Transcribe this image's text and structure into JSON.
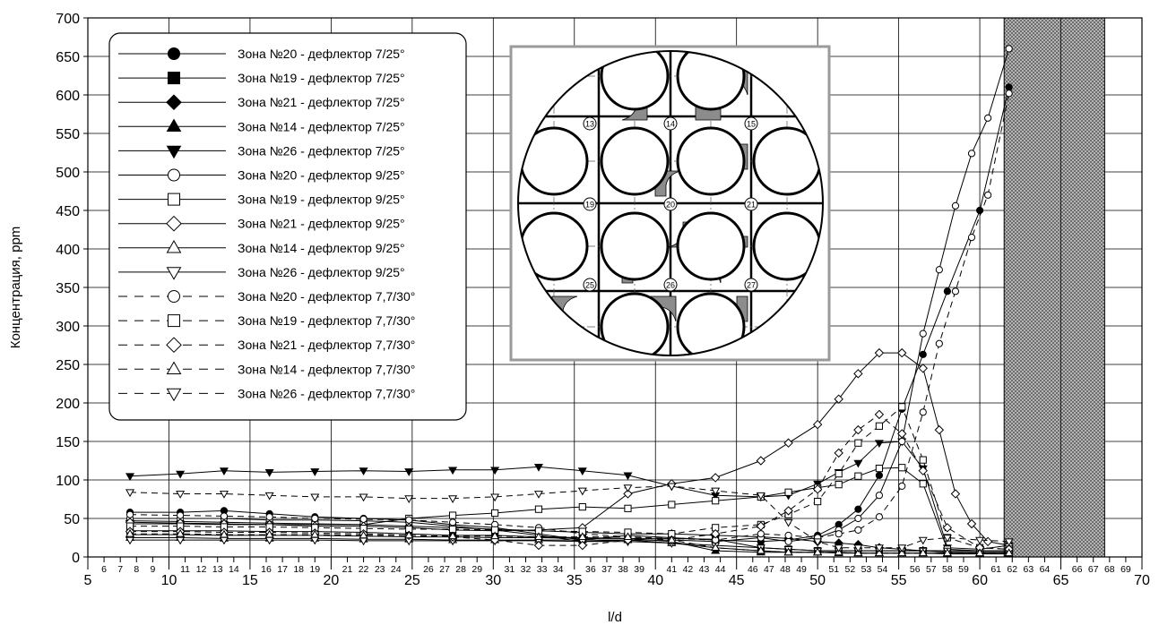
{
  "chart_data": {
    "type": "line",
    "xlabel": "l/d",
    "ylabel": "Концентрация, ppm",
    "xlim": [
      5,
      70
    ],
    "ylim": [
      0,
      700
    ],
    "x_ticks": [
      5,
      10,
      15,
      20,
      25,
      30,
      35,
      40,
      45,
      50,
      55,
      60,
      65,
      70
    ],
    "y_ticks": [
      0,
      50,
      100,
      150,
      200,
      250,
      300,
      350,
      400,
      450,
      500,
      550,
      600,
      650,
      700
    ],
    "grid": true,
    "legend_position": "top-left",
    "spacer_numbers": [
      6,
      7,
      8,
      9,
      11,
      12,
      13,
      14,
      16,
      17,
      18,
      19,
      21,
      22,
      23,
      24,
      26,
      27,
      28,
      29,
      31,
      32,
      33,
      34,
      36,
      37,
      38,
      39,
      41,
      42,
      43,
      44,
      46,
      47,
      48,
      49,
      51,
      52,
      53,
      54,
      56,
      57,
      58,
      59,
      61,
      62,
      63,
      64,
      66,
      67,
      68,
      69
    ],
    "hatched_region": [
      61.5,
      67.7
    ],
    "inset_labels": [
      "13",
      "14",
      "15",
      "19",
      "20",
      "21",
      "25",
      "26",
      "27"
    ],
    "series": [
      {
        "name": "Зона №20 - дефлектор 7/25°",
        "marker": "circle",
        "fill": "filled",
        "dash": "solid",
        "x": [
          7.6,
          10.7,
          13.4,
          16.2,
          19.0,
          22.0,
          24.8,
          27.5,
          30.1,
          32.8,
          35.5,
          38.3,
          41.0,
          43.7,
          46.5,
          48.2,
          50.0,
          51.3,
          52.5,
          53.8,
          55.2,
          56.5,
          58.0,
          60.0,
          61.8
        ],
        "y": [
          58,
          58,
          60,
          56,
          52,
          50,
          48,
          42,
          38,
          30,
          22,
          28,
          25,
          22,
          20,
          22,
          28,
          42,
          62,
          106,
          192,
          263,
          345,
          450,
          610
        ]
      },
      {
        "name": "Зона №19 - дефлектор 7/25°",
        "marker": "square",
        "fill": "filled",
        "dash": "solid",
        "x": [
          7.6,
          10.7,
          13.4,
          16.2,
          19.0,
          22.0,
          24.8,
          27.5,
          30.1,
          32.8,
          35.5,
          38.3,
          41.0,
          43.7,
          46.5,
          48.2,
          50.0,
          51.3,
          52.5,
          53.8,
          55.2,
          56.5,
          58.0,
          60.0,
          61.8
        ],
        "y": [
          34,
          34,
          34,
          33,
          33,
          32,
          30,
          28,
          28,
          26,
          25,
          24,
          24,
          23,
          12,
          10,
          8,
          8,
          8,
          8,
          8,
          8,
          8,
          8,
          8
        ]
      },
      {
        "name": "Зона №21 - дефлектор 7/25°",
        "marker": "diamond",
        "fill": "filled",
        "dash": "solid",
        "x": [
          7.6,
          10.7,
          13.4,
          16.2,
          19.0,
          22.0,
          24.8,
          27.5,
          30.1,
          32.8,
          35.5,
          38.3,
          41.0,
          43.7,
          46.5,
          48.2,
          50.0,
          51.3,
          52.5,
          53.8,
          55.2,
          56.5,
          58.0,
          60.0,
          61.8
        ],
        "y": [
          47,
          46,
          45,
          44,
          43,
          42,
          40,
          38,
          36,
          34,
          32,
          30,
          30,
          28,
          26,
          24,
          20,
          18,
          16,
          12,
          10,
          8,
          6,
          6,
          6
        ]
      },
      {
        "name": "Зона №14 - дефлектор 7/25°",
        "marker": "triangle-up",
        "fill": "filled",
        "dash": "solid",
        "x": [
          7.6,
          10.7,
          13.4,
          16.2,
          19.0,
          22.0,
          24.8,
          27.5,
          30.1,
          32.8,
          35.5,
          38.3,
          41.0,
          43.7,
          46.5,
          48.2,
          50.0,
          51.3,
          52.5,
          53.8,
          55.2,
          56.5,
          58.0,
          60.0,
          61.8
        ],
        "y": [
          29,
          29,
          28,
          28,
          28,
          27,
          26,
          26,
          25,
          25,
          24,
          24,
          20,
          8,
          6,
          6,
          6,
          5,
          5,
          5,
          5,
          5,
          4,
          4,
          4
        ]
      },
      {
        "name": "Зона №26 - дефлектор 7/25°",
        "marker": "triangle-down",
        "fill": "filled",
        "dash": "solid",
        "x": [
          7.6,
          10.7,
          13.4,
          16.2,
          19.0,
          22.0,
          24.8,
          27.5,
          30.1,
          32.8,
          35.5,
          38.3,
          41.0,
          43.7,
          46.5,
          48.2,
          50.0,
          51.3,
          52.5,
          53.8,
          55.2,
          56.5,
          58.0,
          60.0,
          61.8
        ],
        "y": [
          105,
          108,
          112,
          110,
          111,
          112,
          111,
          113,
          113,
          117,
          112,
          106,
          92,
          80,
          78,
          80,
          95,
          110,
          122,
          148,
          150,
          115,
          12,
          10,
          15
        ]
      },
      {
        "name": "Зона №20 - дефлектор 9/25°",
        "marker": "circle",
        "fill": "open",
        "dash": "solid",
        "x": [
          7.6,
          10.7,
          13.4,
          16.2,
          19.0,
          22.0,
          24.8,
          27.5,
          30.1,
          32.8,
          35.5,
          38.3,
          41.0,
          43.7,
          46.5,
          48.2,
          50.0,
          51.3,
          52.5,
          53.8,
          55.2,
          56.5,
          57.5,
          58.5,
          59.5,
          60.5,
          61.8
        ],
        "y": [
          50,
          50,
          50,
          48,
          48,
          47,
          45,
          40,
          35,
          28,
          20,
          22,
          22,
          20,
          25,
          20,
          25,
          35,
          50,
          80,
          150,
          290,
          373,
          456,
          524,
          570,
          660
        ]
      },
      {
        "name": "Зона №19 - дефлектор 9/25°",
        "marker": "square",
        "fill": "open",
        "dash": "solid",
        "x": [
          7.6,
          10.7,
          13.4,
          16.2,
          19.0,
          22.0,
          24.8,
          27.5,
          30.1,
          32.8,
          35.5,
          38.3,
          41.0,
          43.7,
          46.5,
          48.2,
          50.0,
          51.3,
          52.5,
          53.8,
          55.2,
          56.5,
          58.0,
          60.0,
          61.8
        ],
        "y": [
          43,
          43,
          42,
          42,
          42,
          42,
          50,
          54,
          57,
          62,
          65,
          63,
          68,
          73,
          78,
          84,
          90,
          94,
          105,
          115,
          116,
          95,
          10,
          8,
          8
        ]
      },
      {
        "name": "Зона №21 - дефлектор 9/25°",
        "marker": "diamond",
        "fill": "open",
        "dash": "solid",
        "x": [
          7.6,
          10.7,
          13.4,
          16.2,
          19.0,
          22.0,
          24.8,
          27.5,
          30.1,
          32.8,
          35.5,
          38.3,
          41.0,
          43.7,
          46.5,
          48.2,
          50.0,
          51.3,
          52.5,
          53.8,
          55.2,
          56.5,
          57.5,
          58.5,
          59.5,
          60.5,
          61.8
        ],
        "y": [
          45,
          44,
          43,
          42,
          40,
          40,
          38,
          35,
          34,
          35,
          38,
          82,
          95,
          103,
          125,
          148,
          172,
          205,
          238,
          265,
          265,
          245,
          165,
          82,
          43,
          20,
          15
        ]
      },
      {
        "name": "Зона №14 - дефлектор 9/25°",
        "marker": "triangle-up",
        "fill": "open",
        "dash": "solid",
        "x": [
          7.6,
          10.7,
          13.4,
          16.2,
          19.0,
          22.0,
          24.8,
          27.5,
          30.1,
          32.8,
          35.5,
          38.3,
          41.0,
          43.7,
          46.5,
          48.2,
          50.0,
          51.3,
          52.5,
          53.8,
          55.2,
          56.5,
          58.0,
          60.0,
          61.8
        ],
        "y": [
          25,
          25,
          24,
          24,
          24,
          23,
          23,
          22,
          22,
          22,
          22,
          22,
          18,
          12,
          8,
          6,
          6,
          6,
          5,
          5,
          5,
          5,
          5,
          5,
          5
        ]
      },
      {
        "name": "Зона №26 - дефлектор 9/25°",
        "marker": "triangle-down",
        "fill": "open",
        "dash": "solid",
        "x": [
          7.6,
          10.7,
          13.4,
          16.2,
          19.0,
          22.0,
          24.8,
          27.5,
          30.1,
          32.8,
          35.5,
          38.3,
          41.0,
          43.7,
          46.5,
          48.2,
          50.0,
          51.3,
          52.5,
          53.8,
          55.2,
          56.5,
          58.0,
          60.0,
          61.8
        ],
        "y": [
          22,
          22,
          22,
          22,
          22,
          21,
          21,
          21,
          21,
          21,
          20,
          20,
          18,
          15,
          12,
          10,
          8,
          8,
          8,
          8,
          8,
          8,
          8,
          8,
          8
        ]
      },
      {
        "name": "Зона №20 - дефлектор 7,7/30°",
        "marker": "circle",
        "fill": "open",
        "dash": "dashed",
        "x": [
          7.6,
          10.7,
          13.4,
          16.2,
          19.0,
          22.0,
          24.8,
          27.5,
          30.1,
          32.8,
          35.5,
          38.3,
          41.0,
          43.7,
          46.5,
          48.2,
          50.0,
          51.3,
          52.5,
          53.8,
          55.2,
          56.5,
          57.5,
          58.5,
          59.5,
          60.5,
          61.8
        ],
        "y": [
          55,
          54,
          53,
          52,
          50,
          49,
          48,
          45,
          42,
          38,
          30,
          26,
          24,
          22,
          30,
          28,
          25,
          30,
          35,
          52,
          92,
          188,
          277,
          345,
          415,
          470,
          602
        ]
      },
      {
        "name": "Зона №19 - дефлектор 7,7/30°",
        "marker": "square",
        "fill": "open",
        "dash": "dashed",
        "x": [
          7.6,
          10.7,
          13.4,
          16.2,
          19.0,
          22.0,
          24.8,
          27.5,
          30.1,
          32.8,
          35.5,
          38.3,
          41.0,
          43.7,
          46.5,
          48.2,
          50.0,
          51.3,
          52.5,
          53.8,
          55.2,
          56.5,
          58.0,
          60.0,
          61.8
        ],
        "y": [
          40,
          40,
          39,
          39,
          38,
          37,
          36,
          36,
          35,
          34,
          33,
          32,
          30,
          38,
          42,
          55,
          72,
          108,
          148,
          170,
          195,
          126,
          25,
          12,
          10
        ]
      },
      {
        "name": "Зона №21 - дефлектор 7,7/30°",
        "marker": "diamond",
        "fill": "open",
        "dash": "dashed",
        "x": [
          7.6,
          10.7,
          13.4,
          16.2,
          19.0,
          22.0,
          24.8,
          27.5,
          30.1,
          32.8,
          35.5,
          38.3,
          41.0,
          43.7,
          46.5,
          48.2,
          50.0,
          51.3,
          52.5,
          53.8,
          55.2,
          56.5,
          58.0,
          60.0,
          61.8
        ],
        "y": [
          33,
          33,
          32,
          32,
          31,
          30,
          28,
          26,
          22,
          15,
          15,
          22,
          22,
          30,
          40,
          60,
          88,
          135,
          165,
          185,
          160,
          112,
          38,
          12,
          10
        ]
      },
      {
        "name": "Зона №14 - дефлектор 7,7/30°",
        "marker": "triangle-up",
        "fill": "open",
        "dash": "dashed",
        "x": [
          7.6,
          10.7,
          13.4,
          16.2,
          19.0,
          22.0,
          24.8,
          27.5,
          30.1,
          32.8,
          35.5,
          38.3,
          41.0,
          43.7,
          46.5,
          48.2,
          50.0,
          51.3,
          52.5,
          53.8,
          55.2,
          56.5,
          58.0,
          60.0,
          61.8
        ],
        "y": [
          30,
          30,
          29,
          29,
          29,
          28,
          28,
          27,
          27,
          26,
          26,
          26,
          22,
          12,
          8,
          6,
          6,
          6,
          5,
          5,
          5,
          5,
          5,
          5,
          5
        ]
      },
      {
        "name": "Зона №26 - дефлектор 7,7/30°",
        "marker": "triangle-down",
        "fill": "open",
        "dash": "dashed",
        "x": [
          7.6,
          10.7,
          13.4,
          16.2,
          19.0,
          22.0,
          24.8,
          27.5,
          30.1,
          32.8,
          35.5,
          38.3,
          41.0,
          43.7,
          46.5,
          48.2,
          50.0,
          51.3,
          52.5,
          53.8,
          55.2,
          56.5,
          58.0,
          60.0,
          61.8
        ],
        "y": [
          84,
          82,
          82,
          80,
          78,
          78,
          76,
          76,
          78,
          82,
          86,
          90,
          92,
          86,
          80,
          45,
          20,
          12,
          12,
          12,
          12,
          22,
          25,
          22,
          20
        ]
      }
    ]
  }
}
